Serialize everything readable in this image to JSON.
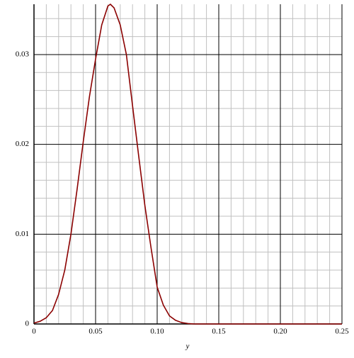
{
  "chart_data": {
    "type": "line",
    "x_label": "y",
    "x": [
      0,
      0.005,
      0.01,
      0.015,
      0.02,
      0.025,
      0.03,
      0.035,
      0.04,
      0.045,
      0.05,
      0.055,
      0.06,
      0.062,
      0.065,
      0.07,
      0.075,
      0.08,
      0.085,
      0.09,
      0.095,
      0.1,
      0.105,
      0.11,
      0.115,
      0.12,
      0.125,
      0.13,
      0.15,
      0.2,
      0.25
    ],
    "series": [
      {
        "color": "#8b0000",
        "values": [
          0.0001,
          0.0003,
          0.0007,
          0.0015,
          0.0033,
          0.006,
          0.01,
          0.015,
          0.0203,
          0.0253,
          0.0295,
          0.0333,
          0.0354,
          0.0356,
          0.0352,
          0.0333,
          0.03,
          0.0243,
          0.0187,
          0.0132,
          0.0085,
          0.0041,
          0.0021,
          0.0009,
          0.0004,
          0.00015,
          5e-05,
          0,
          0,
          0,
          0
        ]
      }
    ],
    "xlim": [
      0,
      0.25
    ],
    "ylim": [
      0,
      0.0356
    ],
    "xticks": [
      0,
      0.05,
      {
        "value": 0.1,
        "label": "0.10"
      },
      0.15,
      {
        "value": 0.2,
        "label": "0.20"
      },
      0.25
    ],
    "yticks": [
      0,
      0.01,
      0.02,
      0.03
    ],
    "x_minor_ticks": [
      0.01,
      0.02,
      0.03,
      0.04,
      0.06,
      0.07,
      0.08,
      0.09,
      0.11,
      0.12,
      0.13,
      0.14,
      0.16,
      0.17,
      0.18,
      0.19,
      0.21,
      0.22,
      0.23,
      0.24
    ],
    "y_minor_ticks": [
      0.002,
      0.004,
      0.006,
      0.008,
      0.012,
      0.014,
      0.016,
      0.018,
      0.022,
      0.024,
      0.026,
      0.028,
      0.032,
      0.034
    ],
    "grid": true
  }
}
